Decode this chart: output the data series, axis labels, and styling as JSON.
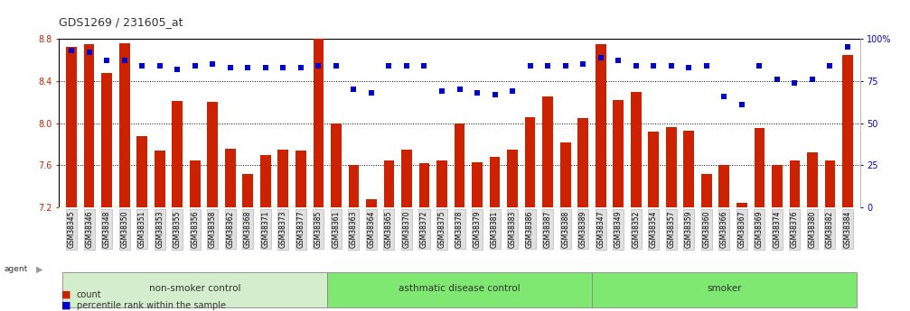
{
  "title": "GDS1269 / 231605_at",
  "samples": [
    "GSM38345",
    "GSM38346",
    "GSM38348",
    "GSM38350",
    "GSM38351",
    "GSM38353",
    "GSM38355",
    "GSM38356",
    "GSM38358",
    "GSM38362",
    "GSM38368",
    "GSM38371",
    "GSM38373",
    "GSM38377",
    "GSM38385",
    "GSM38361",
    "GSM38363",
    "GSM38364",
    "GSM38365",
    "GSM38370",
    "GSM38372",
    "GSM38375",
    "GSM38378",
    "GSM38379",
    "GSM38381",
    "GSM38383",
    "GSM38386",
    "GSM38387",
    "GSM38388",
    "GSM38389",
    "GSM38347",
    "GSM38349",
    "GSM38352",
    "GSM38354",
    "GSM38357",
    "GSM38359",
    "GSM38360",
    "GSM38366",
    "GSM38367",
    "GSM38369",
    "GSM38374",
    "GSM38376",
    "GSM38380",
    "GSM38382",
    "GSM38384"
  ],
  "bar_values": [
    8.72,
    8.75,
    8.48,
    8.76,
    7.88,
    7.74,
    8.21,
    7.65,
    8.2,
    7.76,
    7.52,
    7.7,
    7.75,
    7.74,
    8.82,
    8.0,
    7.6,
    7.28,
    7.65,
    7.75,
    7.62,
    7.65,
    8.0,
    7.63,
    7.68,
    7.75,
    8.06,
    8.25,
    7.82,
    8.05,
    8.75,
    8.22,
    8.3,
    7.92,
    7.96,
    7.93,
    7.52,
    7.6,
    7.24,
    7.95,
    7.6,
    7.65,
    7.72,
    7.65,
    8.65
  ],
  "percentile_values": [
    93,
    92,
    87,
    87,
    84,
    84,
    82,
    84,
    85,
    83,
    83,
    83,
    83,
    83,
    84,
    84,
    70,
    68,
    84,
    84,
    84,
    69,
    70,
    68,
    67,
    69,
    84,
    84,
    84,
    85,
    89,
    87,
    84,
    84,
    84,
    83,
    84,
    66,
    61,
    84,
    76,
    74,
    76,
    84,
    95
  ],
  "groups": [
    {
      "name": "non-smoker control",
      "start": 0,
      "end": 15,
      "color": "#d4edcc"
    },
    {
      "name": "asthmatic disease control",
      "start": 15,
      "end": 30,
      "color": "#7de870"
    },
    {
      "name": "smoker",
      "start": 30,
      "end": 45,
      "color": "#7de870"
    }
  ],
  "ylim": [
    7.2,
    8.8
  ],
  "yticks": [
    7.2,
    7.6,
    8.0,
    8.4,
    8.8
  ],
  "right_yticks": [
    0,
    25,
    50,
    75,
    100
  ],
  "right_ylabels": [
    "0",
    "25",
    "50",
    "75",
    "100%"
  ],
  "bar_color": "#cc2200",
  "dot_color": "#0000cc",
  "background_color": "#ffffff",
  "title_color": "#333333"
}
